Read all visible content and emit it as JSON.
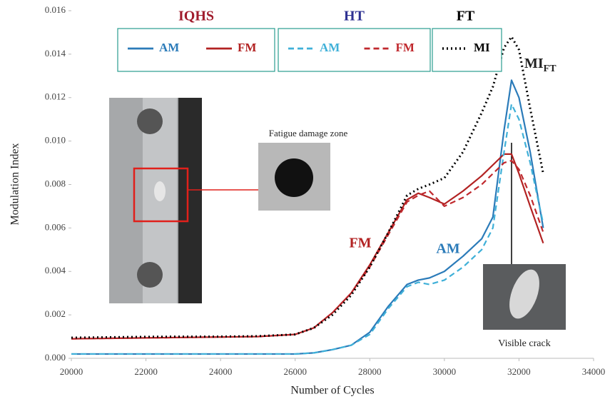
{
  "chart_data": {
    "type": "line",
    "xlabel": "Number of Cycles",
    "ylabel": "Modulation Index",
    "xlim": [
      20000,
      34000
    ],
    "xticks": [
      20000,
      22000,
      24000,
      26000,
      28000,
      30000,
      32000,
      34000
    ],
    "ylim": [
      0,
      0.016
    ],
    "yticks": [
      {
        "value": 0,
        "label": "0.000"
      },
      {
        "value": 0.002,
        "label": "0.002"
      },
      {
        "value": 0.004,
        "label": "0.004"
      },
      {
        "value": 0.006,
        "label": "0.006"
      },
      {
        "value": 0.008,
        "label": "0.008"
      },
      {
        "value": 0.01,
        "label": "0.010"
      },
      {
        "value": 0.012,
        "label": "0.012"
      },
      {
        "value": 0.014,
        "label": "0.014"
      },
      {
        "value": 0.016,
        "label": "0.016"
      }
    ],
    "x": [
      20000,
      21000,
      22000,
      23000,
      24000,
      25000,
      26000,
      26500,
      27000,
      27500,
      28000,
      28500,
      29000,
      29300,
      29600,
      30000,
      30500,
      31000,
      31300,
      31600,
      31800,
      32000,
      32300,
      32650
    ],
    "series": [
      {
        "name": "AM",
        "color": "#2b7bb9",
        "dash": "solid",
        "values": [
          0.0002,
          0.0002,
          0.0002,
          0.0002,
          0.0002,
          0.0002,
          0.0002,
          0.00025,
          0.0004,
          0.0006,
          0.0012,
          0.0024,
          0.0034,
          0.0036,
          0.0037,
          0.004,
          0.0047,
          0.0055,
          0.0065,
          0.0105,
          0.0128,
          0.012,
          0.0095,
          0.006
        ]
      },
      {
        "name": "FM",
        "color": "#b22222",
        "dash": "solid",
        "values": [
          0.0009,
          0.00092,
          0.00094,
          0.00096,
          0.00098,
          0.001,
          0.0011,
          0.0014,
          0.0021,
          0.003,
          0.0043,
          0.0058,
          0.0073,
          0.0076,
          0.0074,
          0.0071,
          0.0077,
          0.0084,
          0.0089,
          0.0094,
          0.0094,
          0.0085,
          0.007,
          0.0053
        ]
      },
      {
        "name": "AM",
        "color": "#3fb0d8",
        "dash": "dashed",
        "values": [
          0.0002,
          0.0002,
          0.0002,
          0.0002,
          0.0002,
          0.0002,
          0.0002,
          0.00025,
          0.0004,
          0.0006,
          0.0011,
          0.0023,
          0.0033,
          0.0035,
          0.0034,
          0.0036,
          0.0042,
          0.005,
          0.006,
          0.0095,
          0.0117,
          0.011,
          0.009,
          0.0062
        ]
      },
      {
        "name": "FM",
        "color": "#c0282d",
        "dash": "dashed",
        "values": [
          0.0009,
          0.00092,
          0.00094,
          0.00096,
          0.00098,
          0.001,
          0.0011,
          0.0014,
          0.0021,
          0.003,
          0.0042,
          0.0057,
          0.0072,
          0.0075,
          0.0077,
          0.007,
          0.0074,
          0.008,
          0.0085,
          0.009,
          0.0091,
          0.0087,
          0.0075,
          0.0058
        ]
      },
      {
        "name": "MI",
        "color": "#000000",
        "dash": "dotted",
        "values": [
          0.00095,
          0.00097,
          0.00099,
          0.001,
          0.001,
          0.00102,
          0.0011,
          0.0014,
          0.002,
          0.0029,
          0.0042,
          0.0058,
          0.0075,
          0.0078,
          0.008,
          0.0083,
          0.0095,
          0.0113,
          0.0125,
          0.0143,
          0.0148,
          0.0142,
          0.0115,
          0.0085
        ]
      }
    ],
    "legend_groups": [
      {
        "title": "IQHS",
        "color": "#a01c2c"
      },
      {
        "title": "HT",
        "color": "#2e3192"
      },
      {
        "title": "FT",
        "color": "#000000"
      }
    ],
    "annotations": {
      "fm": "FM",
      "am": "AM",
      "mi": "MI",
      "mi_sub": "FT",
      "damage": "Fatigue damage zone",
      "crack": "Visible crack"
    }
  }
}
